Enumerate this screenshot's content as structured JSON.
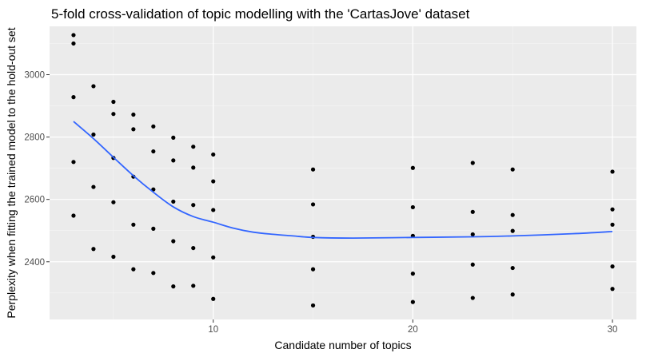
{
  "chart_data": {
    "type": "scatter",
    "title": "5-fold cross-validation of topic modelling with the 'CartasJove' dataset",
    "xlabel": "Candidate number of topics",
    "ylabel": "Perplexity when fitting the trained model to the hold-out set",
    "xlim": [
      1.8,
      31.2
    ],
    "ylim": [
      2215,
      3155
    ],
    "x_ticks": [
      10,
      20,
      30
    ],
    "y_ticks": [
      2400,
      2600,
      2800,
      3000
    ],
    "x_minor_ticks": [
      5,
      15,
      25
    ],
    "y_minor_ticks": [
      2300,
      2500,
      2700,
      2900,
      3100
    ],
    "grid": true,
    "legend": "none",
    "colors": {
      "panel": "#ebebeb",
      "grid_major": "#ffffff",
      "points": "#000000",
      "smooth": "#3366ff"
    },
    "points": [
      {
        "x": 3,
        "y": 3127
      },
      {
        "x": 3,
        "y": 3100
      },
      {
        "x": 3,
        "y": 2928
      },
      {
        "x": 3,
        "y": 2720
      },
      {
        "x": 3,
        "y": 2548
      },
      {
        "x": 4,
        "y": 2963
      },
      {
        "x": 4,
        "y": 2808
      },
      {
        "x": 4,
        "y": 2640
      },
      {
        "x": 4,
        "y": 2441
      },
      {
        "x": 5,
        "y": 2913
      },
      {
        "x": 5,
        "y": 2874
      },
      {
        "x": 5,
        "y": 2733
      },
      {
        "x": 5,
        "y": 2591
      },
      {
        "x": 5,
        "y": 2416
      },
      {
        "x": 6,
        "y": 2872
      },
      {
        "x": 6,
        "y": 2825
      },
      {
        "x": 6,
        "y": 2673
      },
      {
        "x": 6,
        "y": 2519
      },
      {
        "x": 6,
        "y": 2376
      },
      {
        "x": 7,
        "y": 2834
      },
      {
        "x": 7,
        "y": 2754
      },
      {
        "x": 7,
        "y": 2632
      },
      {
        "x": 7,
        "y": 2506
      },
      {
        "x": 7,
        "y": 2364
      },
      {
        "x": 8,
        "y": 2798
      },
      {
        "x": 8,
        "y": 2725
      },
      {
        "x": 8,
        "y": 2593
      },
      {
        "x": 8,
        "y": 2466
      },
      {
        "x": 8,
        "y": 2321
      },
      {
        "x": 9,
        "y": 2769
      },
      {
        "x": 9,
        "y": 2702
      },
      {
        "x": 9,
        "y": 2582
      },
      {
        "x": 9,
        "y": 2444
      },
      {
        "x": 9,
        "y": 2323
      },
      {
        "x": 10,
        "y": 2744
      },
      {
        "x": 10,
        "y": 2658
      },
      {
        "x": 10,
        "y": 2566
      },
      {
        "x": 10,
        "y": 2414
      },
      {
        "x": 10,
        "y": 2281
      },
      {
        "x": 15,
        "y": 2696
      },
      {
        "x": 15,
        "y": 2584
      },
      {
        "x": 15,
        "y": 2480
      },
      {
        "x": 15,
        "y": 2376
      },
      {
        "x": 15,
        "y": 2260
      },
      {
        "x": 20,
        "y": 2701
      },
      {
        "x": 20,
        "y": 2575
      },
      {
        "x": 20,
        "y": 2483
      },
      {
        "x": 20,
        "y": 2362
      },
      {
        "x": 20,
        "y": 2271
      },
      {
        "x": 23,
        "y": 2717
      },
      {
        "x": 23,
        "y": 2560
      },
      {
        "x": 23,
        "y": 2488
      },
      {
        "x": 23,
        "y": 2391
      },
      {
        "x": 23,
        "y": 2284
      },
      {
        "x": 25,
        "y": 2696
      },
      {
        "x": 25,
        "y": 2550
      },
      {
        "x": 25,
        "y": 2499
      },
      {
        "x": 25,
        "y": 2380
      },
      {
        "x": 25,
        "y": 2295
      },
      {
        "x": 30,
        "y": 2689
      },
      {
        "x": 30,
        "y": 2568
      },
      {
        "x": 30,
        "y": 2519
      },
      {
        "x": 30,
        "y": 2385
      },
      {
        "x": 30,
        "y": 2313
      }
    ],
    "smooth_line": [
      {
        "x": 3,
        "y": 2850
      },
      {
        "x": 4,
        "y": 2795
      },
      {
        "x": 5,
        "y": 2735
      },
      {
        "x": 6,
        "y": 2676
      },
      {
        "x": 7,
        "y": 2623
      },
      {
        "x": 8,
        "y": 2576
      },
      {
        "x": 9,
        "y": 2545
      },
      {
        "x": 10,
        "y": 2527
      },
      {
        "x": 11,
        "y": 2508
      },
      {
        "x": 12,
        "y": 2495
      },
      {
        "x": 13,
        "y": 2488
      },
      {
        "x": 14,
        "y": 2483
      },
      {
        "x": 15,
        "y": 2478
      },
      {
        "x": 17,
        "y": 2476
      },
      {
        "x": 20,
        "y": 2478
      },
      {
        "x": 23,
        "y": 2480
      },
      {
        "x": 25,
        "y": 2483
      },
      {
        "x": 28,
        "y": 2490
      },
      {
        "x": 30,
        "y": 2497
      }
    ]
  }
}
